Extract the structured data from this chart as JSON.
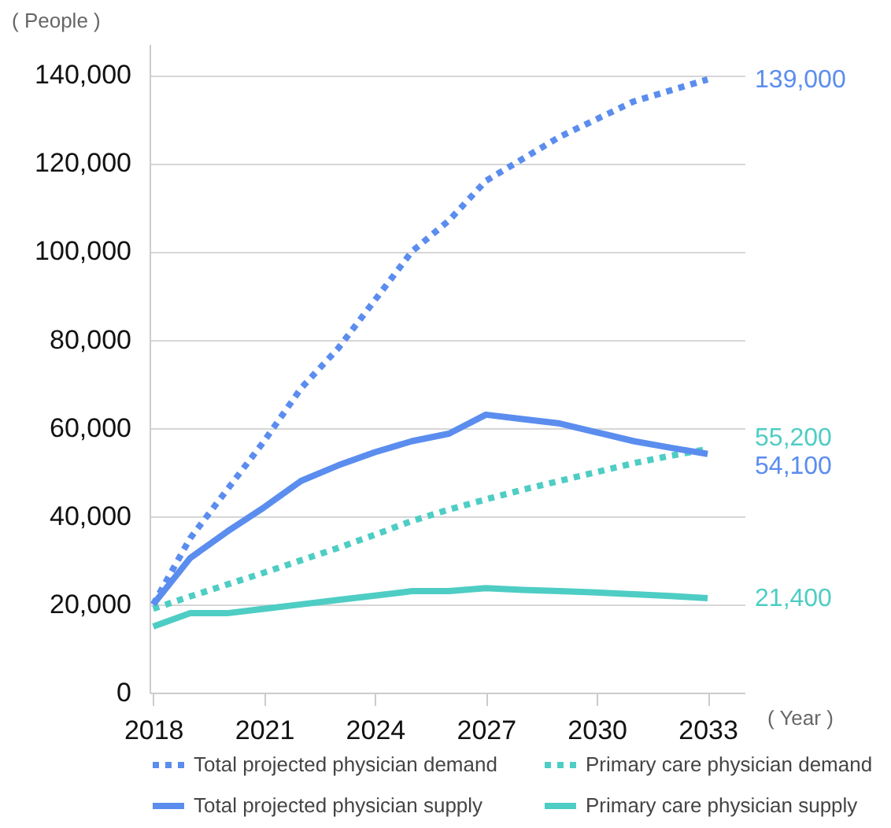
{
  "chart_data": {
    "type": "line",
    "ylabel": "( People )",
    "xlabel": "( Year )",
    "x": [
      2018,
      2019,
      2020,
      2021,
      2022,
      2023,
      2024,
      2025,
      2026,
      2027,
      2028,
      2029,
      2030,
      2031,
      2032,
      2033
    ],
    "xlim": [
      2017.9,
      2034
    ],
    "xticks": [
      2018,
      2021,
      2024,
      2027,
      2030,
      2033
    ],
    "ylim": [
      0,
      147000
    ],
    "yticks": [
      {
        "value": 0,
        "label": "0"
      },
      {
        "value": 20000,
        "label": "20,000"
      },
      {
        "value": 40000,
        "label": "40,000"
      },
      {
        "value": 60000,
        "label": "60,000"
      },
      {
        "value": 80000,
        "label": "80,000"
      },
      {
        "value": 100000,
        "label": "100,000"
      },
      {
        "value": 120000,
        "label": "120,000"
      },
      {
        "value": 140000,
        "label": "140,000"
      }
    ],
    "series": [
      {
        "name": "Total projected physician demand",
        "color": "#5b8def",
        "line_style": "dotted",
        "values": [
          20000,
          35000,
          46000,
          57000,
          69000,
          78000,
          89000,
          100000,
          107000,
          116000,
          121000,
          126000,
          130000,
          134000,
          136500,
          139000
        ],
        "value_labels": [
          null,
          null,
          null,
          null,
          null,
          null,
          null,
          null,
          null,
          null,
          null,
          null,
          null,
          null,
          null,
          "139,000"
        ]
      },
      {
        "name": "Primary care physician demand",
        "color": "#4ecdc4",
        "line_style": "dotted",
        "values": [
          19000,
          21800,
          24500,
          27200,
          30000,
          32800,
          35800,
          38900,
          41500,
          43800,
          46000,
          48000,
          50000,
          52000,
          53700,
          55200
        ],
        "value_labels": [
          null,
          null,
          null,
          null,
          null,
          null,
          null,
          null,
          null,
          null,
          null,
          null,
          null,
          null,
          null,
          "55,200"
        ]
      },
      {
        "name": "Total projected physician supply",
        "color": "#5b8def",
        "line_style": "solid",
        "values": [
          20000,
          30500,
          36500,
          42000,
          48000,
          51500,
          54500,
          57000,
          58700,
          63000,
          62000,
          61000,
          59000,
          57000,
          55500,
          54100
        ],
        "value_labels": [
          null,
          null,
          null,
          null,
          null,
          null,
          null,
          null,
          null,
          null,
          null,
          null,
          null,
          null,
          null,
          "54,100"
        ]
      },
      {
        "name": "Primary care physician supply",
        "color": "#4ecdc4",
        "line_style": "solid",
        "values": [
          15000,
          18000,
          18000,
          19000,
          20000,
          21000,
          22000,
          23000,
          23000,
          23700,
          23300,
          23000,
          22700,
          22300,
          21900,
          21400
        ],
        "value_labels": [
          null,
          null,
          null,
          null,
          null,
          null,
          null,
          null,
          null,
          null,
          null,
          null,
          null,
          null,
          null,
          "21,400"
        ]
      }
    ],
    "grid": "y",
    "legend": "bottom",
    "marker": "none"
  }
}
